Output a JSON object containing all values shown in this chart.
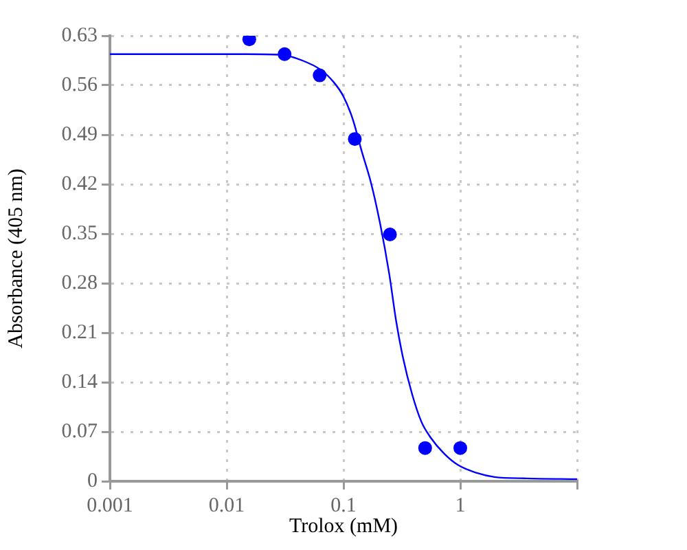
{
  "chart_data": {
    "type": "scatter",
    "xlabel": "Trolox (mM)",
    "ylabel": "Absorbance (405 nm)",
    "log": "x",
    "xlim": [
      0.001,
      10
    ],
    "ylim": [
      0,
      0.63
    ],
    "xticks": [
      0.001,
      0.01,
      0.1,
      1,
      {
        "value": 10,
        "label": null
      }
    ],
    "yticks": [
      0,
      0.07,
      0.14,
      0.21,
      0.28,
      0.35,
      0.42,
      0.49,
      0.56,
      0.63
    ],
    "grid": true,
    "legend": false,
    "series": [
      {
        "type": "line",
        "color": "#0000ff",
        "marker": "none",
        "x": [
          0.001,
          0.00666,
          0.015,
          0.0296,
          0.0444,
          0.0636,
          0.0828,
          0.1,
          0.12,
          0.143,
          0.172,
          0.206,
          0.247,
          0.282,
          0.323,
          0.387,
          0.465,
          0.556,
          0.728,
          0.955,
          1.37,
          1.97,
          3.7,
          10
        ],
        "values": [
          0.604,
          0.604,
          0.604,
          0.603,
          0.595,
          0.582,
          0.564,
          0.544,
          0.512,
          0.467,
          0.422,
          0.364,
          0.292,
          0.227,
          0.175,
          0.123,
          0.084,
          0.062,
          0.039,
          0.023,
          0.012,
          0.006,
          0.004,
          0.003
        ]
      },
      {
        "type": "scatter",
        "color": "#0000ff",
        "marker": "circle",
        "x": [
          0.0156,
          0.0313,
          0.0625,
          0.125,
          0.25,
          0.5,
          1
        ],
        "values": [
          0.625,
          0.604,
          0.574,
          0.484,
          0.349,
          0.047,
          0.047
        ]
      }
    ]
  }
}
